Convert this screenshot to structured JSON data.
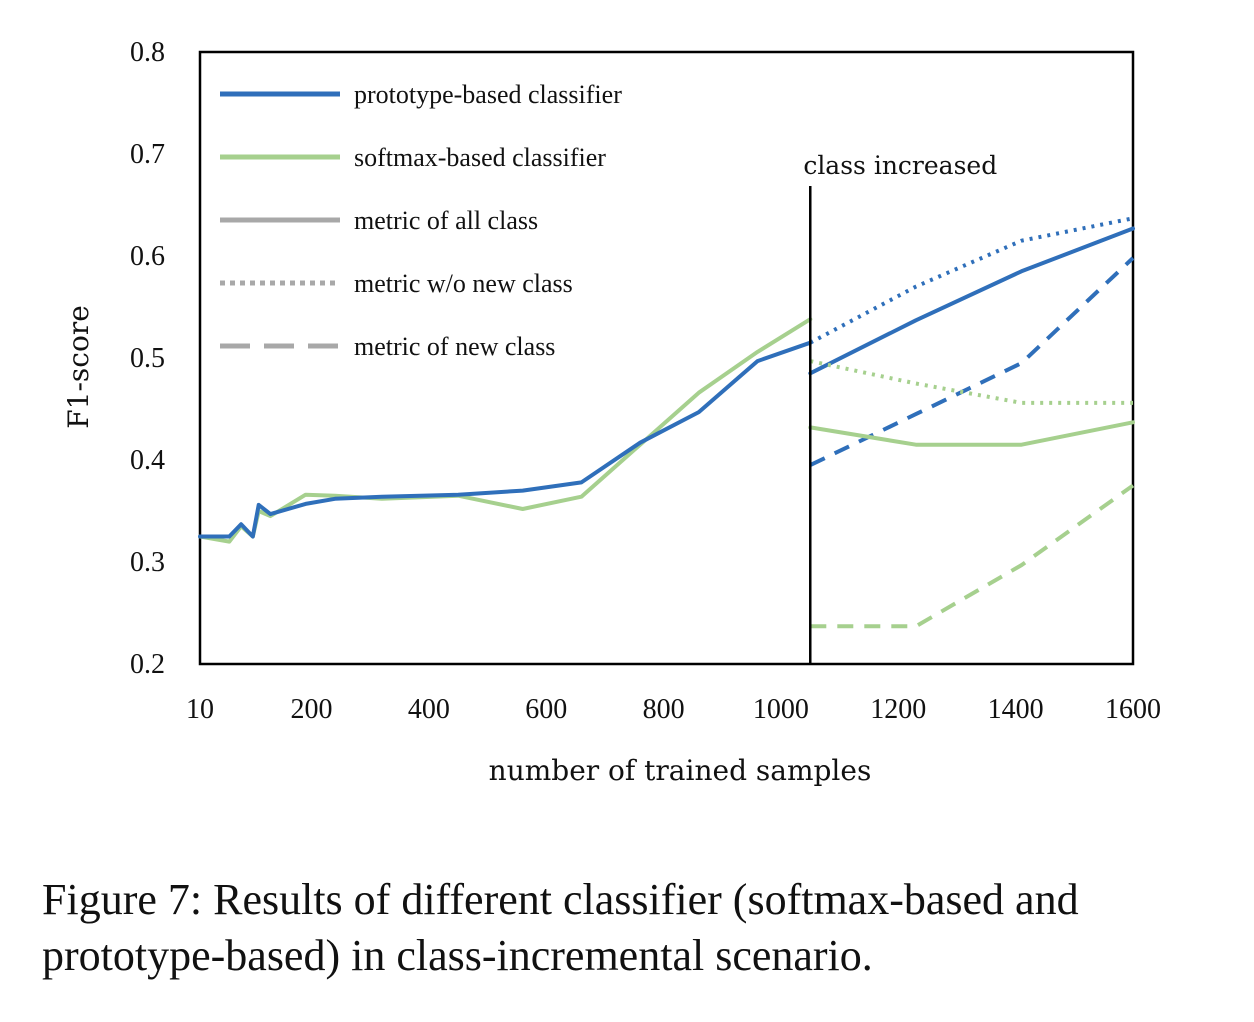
{
  "chart_data": {
    "type": "line",
    "xlabel": "number of trained samples",
    "ylabel": "F1-score",
    "ylim": [
      0.2,
      0.8
    ],
    "yticks": [
      "0.2",
      "0.3",
      "0.4",
      "0.5",
      "0.6",
      "0.7",
      "0.8"
    ],
    "xticks": [
      "10",
      "200",
      "400",
      "600",
      "800",
      "1000",
      "1200",
      "1400",
      "1600"
    ],
    "grid": false,
    "legend_position": "top-left",
    "legend": [
      {
        "label": "prototype-based classifier",
        "color": "#2f6fba",
        "style": "solid"
      },
      {
        "label": "softmax-based classifier",
        "color": "#a6d08e",
        "style": "solid"
      },
      {
        "label": "metric of all class",
        "color": "#a8a8a8",
        "style": "solid"
      },
      {
        "label": "metric w/o new class",
        "color": "#a8a8a8",
        "style": "dotted"
      },
      {
        "label": "metric of new class",
        "color": "#a8a8a8",
        "style": "dashed"
      }
    ],
    "annotation": {
      "text": "class increased",
      "x": 1050
    },
    "series": [
      {
        "classifier": "softmax",
        "metric": "all",
        "color": "#a6d08e",
        "style": "solid",
        "x": [
          10,
          60,
          80,
          100,
          110,
          130,
          190,
          240,
          320,
          450,
          560,
          660,
          760,
          860,
          960,
          1050
        ],
        "y": [
          0.325,
          0.32,
          0.335,
          0.325,
          0.35,
          0.345,
          0.366,
          0.365,
          0.362,
          0.365,
          0.352,
          0.364,
          0.415,
          0.466,
          0.506,
          0.538
        ]
      },
      {
        "classifier": "prototype",
        "metric": "all",
        "color": "#2f6fba",
        "style": "solid",
        "x": [
          10,
          60,
          80,
          100,
          110,
          130,
          190,
          240,
          320,
          450,
          560,
          660,
          760,
          860,
          960,
          1050
        ],
        "y": [
          0.325,
          0.325,
          0.337,
          0.325,
          0.356,
          0.347,
          0.357,
          0.362,
          0.364,
          0.366,
          0.37,
          0.378,
          0.417,
          0.447,
          0.497,
          0.515
        ]
      },
      {
        "classifier": "prototype",
        "metric": "all",
        "color": "#2f6fba",
        "style": "solid",
        "x": [
          1050,
          1230,
          1410,
          1600
        ],
        "y": [
          0.485,
          0.537,
          0.585,
          0.627
        ]
      },
      {
        "classifier": "prototype",
        "metric": "w/o new class",
        "color": "#2f6fba",
        "style": "dotted",
        "x": [
          1050,
          1230,
          1410,
          1600
        ],
        "y": [
          0.515,
          0.57,
          0.615,
          0.637
        ]
      },
      {
        "classifier": "prototype",
        "metric": "new class",
        "color": "#2f6fba",
        "style": "dashed",
        "x": [
          1050,
          1230,
          1410,
          1600
        ],
        "y": [
          0.395,
          0.445,
          0.495,
          0.598
        ]
      },
      {
        "classifier": "softmax",
        "metric": "all",
        "color": "#a6d08e",
        "style": "solid",
        "x": [
          1050,
          1230,
          1410,
          1600
        ],
        "y": [
          0.432,
          0.415,
          0.415,
          0.437
        ]
      },
      {
        "classifier": "softmax",
        "metric": "w/o new class",
        "color": "#a6d08e",
        "style": "dotted",
        "x": [
          1050,
          1230,
          1410,
          1600
        ],
        "y": [
          0.497,
          0.475,
          0.456,
          0.456
        ]
      },
      {
        "classifier": "softmax",
        "metric": "new class",
        "color": "#a6d08e",
        "style": "dashed",
        "x": [
          1050,
          1230,
          1410,
          1600
        ],
        "y": [
          0.237,
          0.237,
          0.297,
          0.375
        ]
      }
    ]
  },
  "caption": "Figure 7: Results of different classifier (softmax-based and prototype-based) in class-incremental scenario."
}
